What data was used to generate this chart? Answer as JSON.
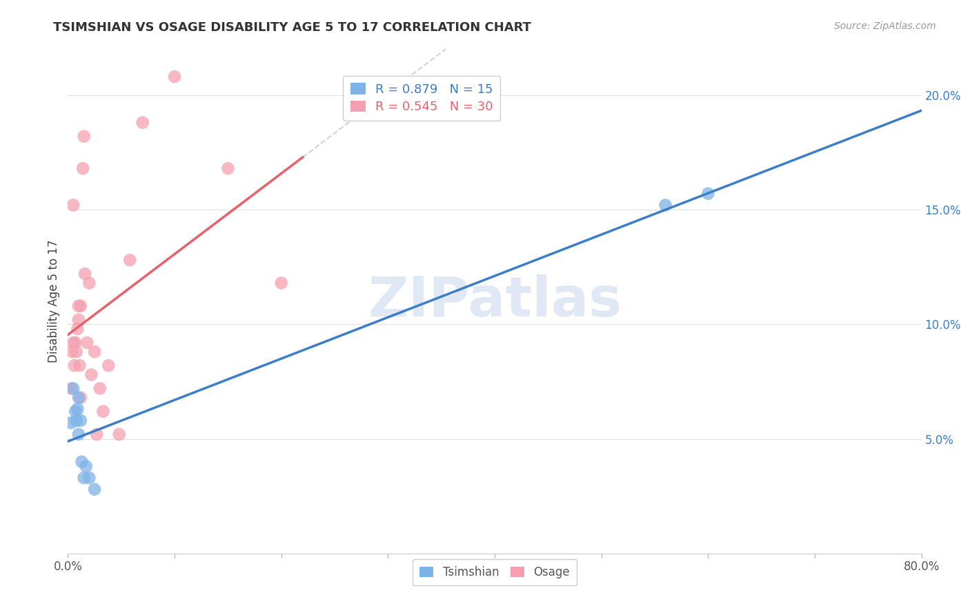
{
  "title": "TSIMSHIAN VS OSAGE DISABILITY AGE 5 TO 17 CORRELATION CHART",
  "source": "Source: ZipAtlas.com",
  "xlabel": "",
  "ylabel": "Disability Age 5 to 17",
  "xlim": [
    0.0,
    0.8
  ],
  "ylim": [
    0.0,
    0.22
  ],
  "xticks": [
    0.0,
    0.1,
    0.2,
    0.3,
    0.4,
    0.5,
    0.6,
    0.7,
    0.8
  ],
  "yticks": [
    0.0,
    0.05,
    0.1,
    0.15,
    0.2
  ],
  "tsimshian_color": "#7eb3e8",
  "osage_color": "#f5a0b0",
  "tsimshian_line_color": "#3a7dc9",
  "osage_line_color": "#e8606a",
  "watermark": "ZIPatlas",
  "tsimshian_x": [
    0.003,
    0.005,
    0.007,
    0.008,
    0.009,
    0.01,
    0.01,
    0.012,
    0.013,
    0.015,
    0.017,
    0.02,
    0.025,
    0.56,
    0.6
  ],
  "tsimshian_y": [
    0.057,
    0.072,
    0.062,
    0.058,
    0.063,
    0.068,
    0.052,
    0.058,
    0.04,
    0.033,
    0.038,
    0.033,
    0.028,
    0.152,
    0.157
  ],
  "osage_x": [
    0.003,
    0.004,
    0.005,
    0.005,
    0.006,
    0.007,
    0.008,
    0.009,
    0.01,
    0.01,
    0.011,
    0.012,
    0.012,
    0.014,
    0.015,
    0.016,
    0.018,
    0.02,
    0.022,
    0.025,
    0.027,
    0.03,
    0.033,
    0.038,
    0.048,
    0.058,
    0.07,
    0.1,
    0.15,
    0.2
  ],
  "osage_y": [
    0.072,
    0.088,
    0.092,
    0.152,
    0.082,
    0.092,
    0.088,
    0.098,
    0.102,
    0.108,
    0.082,
    0.108,
    0.068,
    0.168,
    0.182,
    0.122,
    0.092,
    0.118,
    0.078,
    0.088,
    0.052,
    0.072,
    0.062,
    0.082,
    0.052,
    0.128,
    0.188,
    0.208,
    0.168,
    0.118
  ],
  "background_color": "#ffffff",
  "grid_color": "#e0e0e0",
  "ref_line_color": "#c0c0c0",
  "legend_r_tsimshian": "R = 0.879",
  "legend_n_tsimshian": "N = 15",
  "legend_r_osage": "R = 0.545",
  "legend_n_osage": "N = 30"
}
